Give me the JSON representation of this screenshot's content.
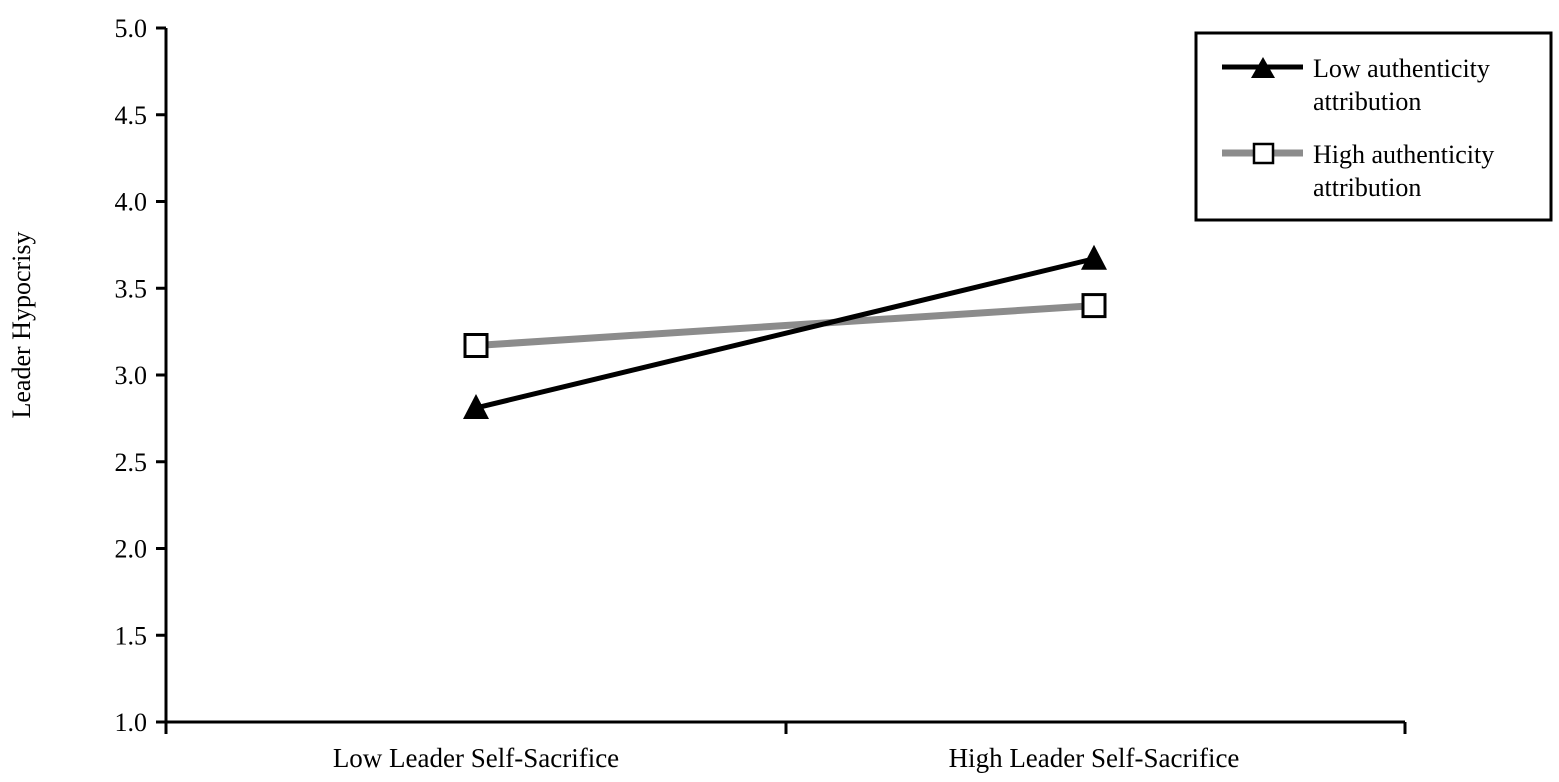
{
  "chart_data": {
    "type": "line",
    "title": "",
    "xlabel": "",
    "ylabel": "Leader Hypocrisy",
    "categories": [
      "Low Leader Self-Sacrifice",
      "High Leader Self-Sacrifice"
    ],
    "ylim": [
      1.0,
      5.0
    ],
    "yticks": [
      "1.0",
      "1.5",
      "2.0",
      "2.5",
      "3.0",
      "3.5",
      "4.0",
      "4.5",
      "5.0"
    ],
    "grid": false,
    "legend_position": "top-right",
    "series": [
      {
        "name": "Low authenticity attribution",
        "legend_lines": [
          "Low authenticity",
          "attribution"
        ],
        "values": [
          2.81,
          3.67
        ],
        "color": "#000000",
        "marker": "filled-triangle"
      },
      {
        "name": "High authenticity attribution",
        "legend_lines": [
          "High authenticity",
          "attribution"
        ],
        "values": [
          3.17,
          3.4
        ],
        "color": "#8c8c8c",
        "marker": "open-square"
      }
    ]
  }
}
